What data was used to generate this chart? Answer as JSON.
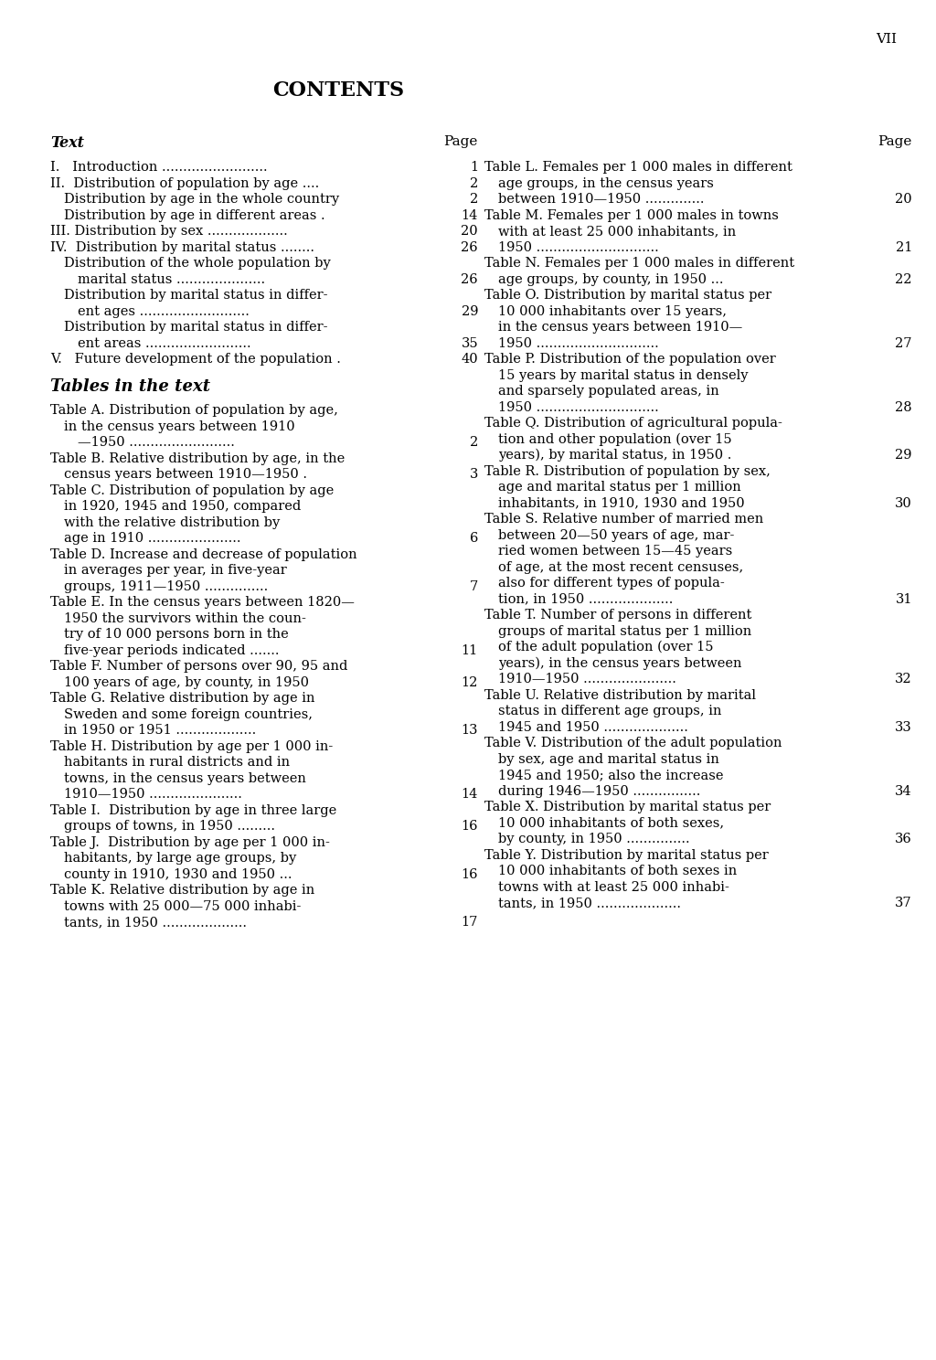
{
  "page_number": "VII",
  "title": "CONTENTS",
  "bg_color": "#ffffff",
  "text_color": "#000000",
  "left_column": {
    "header_text": "Text",
    "header_page": "Page",
    "items": [
      {
        "indent": 0,
        "bold": false,
        "text": "I.   Introduction .........................",
        "page": "1"
      },
      {
        "indent": 0,
        "bold": false,
        "text": "II.  Distribution of population by age ....",
        "page": "2"
      },
      {
        "indent": 1,
        "bold": false,
        "text": "Distribution by age in the whole country",
        "page": "2"
      },
      {
        "indent": 1,
        "bold": false,
        "text": "Distribution by age in different areas .",
        "page": "14"
      },
      {
        "indent": 0,
        "bold": false,
        "text": "III. Distribution by sex ...................",
        "page": "20"
      },
      {
        "indent": 0,
        "bold": false,
        "text": "IV.  Distribution by marital status ........",
        "page": "26"
      },
      {
        "indent": 1,
        "bold": false,
        "text": "Distribution of the whole population by",
        "page": ""
      },
      {
        "indent": 2,
        "bold": false,
        "text": "marital status .....................",
        "page": "26"
      },
      {
        "indent": 1,
        "bold": false,
        "text": "Distribution by marital status in differ-",
        "page": ""
      },
      {
        "indent": 2,
        "bold": false,
        "text": "ent ages ..........................",
        "page": "29"
      },
      {
        "indent": 1,
        "bold": false,
        "text": "Distribution by marital status in differ-",
        "page": ""
      },
      {
        "indent": 2,
        "bold": false,
        "text": "ent areas .........................",
        "page": "35"
      },
      {
        "indent": 0,
        "bold": false,
        "text": "V.   Future development of the population .",
        "page": "40"
      },
      {
        "indent": 0,
        "bold": false,
        "text": "",
        "page": ""
      },
      {
        "indent": 0,
        "bold": true,
        "text": "Tables in the text",
        "page": ""
      },
      {
        "indent": 0,
        "bold": false,
        "text": "",
        "page": ""
      },
      {
        "indent": 0,
        "bold": false,
        "text": "Table A. Distribution of population by age,",
        "page": ""
      },
      {
        "indent": 1,
        "bold": false,
        "text": "in the census years between 1910",
        "page": ""
      },
      {
        "indent": 2,
        "bold": false,
        "text": "—1950 .........................",
        "page": "2"
      },
      {
        "indent": 0,
        "bold": false,
        "text": "Table B. Relative distribution by age, in the",
        "page": ""
      },
      {
        "indent": 1,
        "bold": false,
        "text": "census years between 1910—1950 .",
        "page": "3"
      },
      {
        "indent": 0,
        "bold": false,
        "text": "Table C. Distribution of population by age",
        "page": ""
      },
      {
        "indent": 1,
        "bold": false,
        "text": "in 1920, 1945 and 1950, compared",
        "page": ""
      },
      {
        "indent": 1,
        "bold": false,
        "text": "with the relative distribution by",
        "page": ""
      },
      {
        "indent": 1,
        "bold": false,
        "text": "age in 1910 ......................",
        "page": "6"
      },
      {
        "indent": 0,
        "bold": false,
        "text": "Table D. Increase and decrease of population",
        "page": ""
      },
      {
        "indent": 1,
        "bold": false,
        "text": "in averages per year, in five-year",
        "page": ""
      },
      {
        "indent": 1,
        "bold": false,
        "text": "groups, 1911—1950 ...............",
        "page": "7"
      },
      {
        "indent": 0,
        "bold": false,
        "text": "Table E. In the census years between 1820—",
        "page": ""
      },
      {
        "indent": 1,
        "bold": false,
        "text": "1950 the survivors within the coun-",
        "page": ""
      },
      {
        "indent": 1,
        "bold": false,
        "text": "try of 10 000 persons born in the",
        "page": ""
      },
      {
        "indent": 1,
        "bold": false,
        "text": "five-year periods indicated .......",
        "page": "11"
      },
      {
        "indent": 0,
        "bold": false,
        "text": "Table F. Number of persons over 90, 95 and",
        "page": ""
      },
      {
        "indent": 1,
        "bold": false,
        "text": "100 years of age, by county, in 1950",
        "page": "12"
      },
      {
        "indent": 0,
        "bold": false,
        "text": "Table G. Relative distribution by age in",
        "page": ""
      },
      {
        "indent": 1,
        "bold": false,
        "text": "Sweden and some foreign countries,",
        "page": ""
      },
      {
        "indent": 1,
        "bold": false,
        "text": "in 1950 or 1951 ...................",
        "page": "13"
      },
      {
        "indent": 0,
        "bold": false,
        "text": "Table H. Distribution by age per 1 000 in-",
        "page": ""
      },
      {
        "indent": 1,
        "bold": false,
        "text": "habitants in rural districts and in",
        "page": ""
      },
      {
        "indent": 1,
        "bold": false,
        "text": "towns, in the census years between",
        "page": ""
      },
      {
        "indent": 1,
        "bold": false,
        "text": "1910—1950 ......................",
        "page": "14"
      },
      {
        "indent": 0,
        "bold": false,
        "text": "Table I.  Distribution by age in three large",
        "page": ""
      },
      {
        "indent": 1,
        "bold": false,
        "text": "groups of towns, in 1950 .........",
        "page": "16"
      },
      {
        "indent": 0,
        "bold": false,
        "text": "Table J.  Distribution by age per 1 000 in-",
        "page": ""
      },
      {
        "indent": 1,
        "bold": false,
        "text": "habitants, by large age groups, by",
        "page": ""
      },
      {
        "indent": 1,
        "bold": false,
        "text": "county in 1910, 1930 and 1950 ...",
        "page": "16"
      },
      {
        "indent": 0,
        "bold": false,
        "text": "Table K. Relative distribution by age in",
        "page": ""
      },
      {
        "indent": 1,
        "bold": false,
        "text": "towns with 25 000—75 000 inhabi-",
        "page": ""
      },
      {
        "indent": 1,
        "bold": false,
        "text": "tants, in 1950 ....................",
        "page": "17"
      }
    ]
  },
  "right_column": {
    "header_page": "Page",
    "items": [
      {
        "indent": 0,
        "bold": false,
        "text": "Table L. Females per 1 000 males in different",
        "page": ""
      },
      {
        "indent": 1,
        "bold": false,
        "text": "age groups, in the census years",
        "page": ""
      },
      {
        "indent": 1,
        "bold": false,
        "text": "between 1910—1950 ..............",
        "page": "20"
      },
      {
        "indent": 0,
        "bold": false,
        "text": "Table M. Females per 1 000 males in towns",
        "page": ""
      },
      {
        "indent": 1,
        "bold": false,
        "text": "with at least 25 000 inhabitants, in",
        "page": ""
      },
      {
        "indent": 1,
        "bold": false,
        "text": "1950 .............................",
        "page": "21"
      },
      {
        "indent": 0,
        "bold": false,
        "text": "Table N. Females per 1 000 males in different",
        "page": ""
      },
      {
        "indent": 1,
        "bold": false,
        "text": "age groups, by county, in 1950 ...",
        "page": "22"
      },
      {
        "indent": 0,
        "bold": false,
        "text": "Table O. Distribution by marital status per",
        "page": ""
      },
      {
        "indent": 1,
        "bold": false,
        "text": "10 000 inhabitants over 15 years,",
        "page": ""
      },
      {
        "indent": 1,
        "bold": false,
        "text": "in the census years between 1910—",
        "page": ""
      },
      {
        "indent": 1,
        "bold": false,
        "text": "1950 .............................",
        "page": "27"
      },
      {
        "indent": 0,
        "bold": false,
        "text": "Table P. Distribution of the population over",
        "page": ""
      },
      {
        "indent": 1,
        "bold": false,
        "text": "15 years by marital status in densely",
        "page": ""
      },
      {
        "indent": 1,
        "bold": false,
        "text": "and sparsely populated areas, in",
        "page": ""
      },
      {
        "indent": 1,
        "bold": false,
        "text": "1950 .............................",
        "page": "28"
      },
      {
        "indent": 0,
        "bold": false,
        "text": "Table Q. Distribution of agricultural popula-",
        "page": ""
      },
      {
        "indent": 1,
        "bold": false,
        "text": "tion and other population (over 15",
        "page": ""
      },
      {
        "indent": 1,
        "bold": false,
        "text": "years), by marital status, in 1950 .",
        "page": "29"
      },
      {
        "indent": 0,
        "bold": false,
        "text": "Table R. Distribution of population by sex,",
        "page": ""
      },
      {
        "indent": 1,
        "bold": false,
        "text": "age and marital status per 1 million",
        "page": ""
      },
      {
        "indent": 1,
        "bold": false,
        "text": "inhabitants, in 1910, 1930 and 1950",
        "page": "30"
      },
      {
        "indent": 0,
        "bold": false,
        "text": "Table S. Relative number of married men",
        "page": ""
      },
      {
        "indent": 1,
        "bold": false,
        "text": "between 20—50 years of age, mar-",
        "page": ""
      },
      {
        "indent": 1,
        "bold": false,
        "text": "ried women between 15—45 years",
        "page": ""
      },
      {
        "indent": 1,
        "bold": false,
        "text": "of age, at the most recent censuses,",
        "page": ""
      },
      {
        "indent": 1,
        "bold": false,
        "text": "also for different types of popula-",
        "page": ""
      },
      {
        "indent": 1,
        "bold": false,
        "text": "tion, in 1950 ....................",
        "page": "31"
      },
      {
        "indent": 0,
        "bold": false,
        "text": "Table T. Number of persons in different",
        "page": ""
      },
      {
        "indent": 1,
        "bold": false,
        "text": "groups of marital status per 1 million",
        "page": ""
      },
      {
        "indent": 1,
        "bold": false,
        "text": "of the adult population (over 15",
        "page": ""
      },
      {
        "indent": 1,
        "bold": false,
        "text": "years), in the census years between",
        "page": ""
      },
      {
        "indent": 1,
        "bold": false,
        "text": "1910—1950 ......................",
        "page": "32"
      },
      {
        "indent": 0,
        "bold": false,
        "text": "Table U. Relative distribution by marital",
        "page": ""
      },
      {
        "indent": 1,
        "bold": false,
        "text": "status in different age groups, in",
        "page": ""
      },
      {
        "indent": 1,
        "bold": false,
        "text": "1945 and 1950 ....................",
        "page": "33"
      },
      {
        "indent": 0,
        "bold": false,
        "text": "Table V. Distribution of the adult population",
        "page": ""
      },
      {
        "indent": 1,
        "bold": false,
        "text": "by sex, age and marital status in",
        "page": ""
      },
      {
        "indent": 1,
        "bold": false,
        "text": "1945 and 1950; also the increase",
        "page": ""
      },
      {
        "indent": 1,
        "bold": false,
        "text": "during 1946—1950 ................",
        "page": "34"
      },
      {
        "indent": 0,
        "bold": false,
        "text": "Table X. Distribution by marital status per",
        "page": ""
      },
      {
        "indent": 1,
        "bold": false,
        "text": "10 000 inhabitants of both sexes,",
        "page": ""
      },
      {
        "indent": 1,
        "bold": false,
        "text": "by county, in 1950 ...............",
        "page": "36"
      },
      {
        "indent": 0,
        "bold": false,
        "text": "Table Y. Distribution by marital status per",
        "page": ""
      },
      {
        "indent": 1,
        "bold": false,
        "text": "10 000 inhabitants of both sexes in",
        "page": ""
      },
      {
        "indent": 1,
        "bold": false,
        "text": "towns with at least 25 000 inhabi-",
        "page": ""
      },
      {
        "indent": 1,
        "bold": false,
        "text": "tants, in 1950 ....................",
        "page": "37"
      }
    ]
  }
}
